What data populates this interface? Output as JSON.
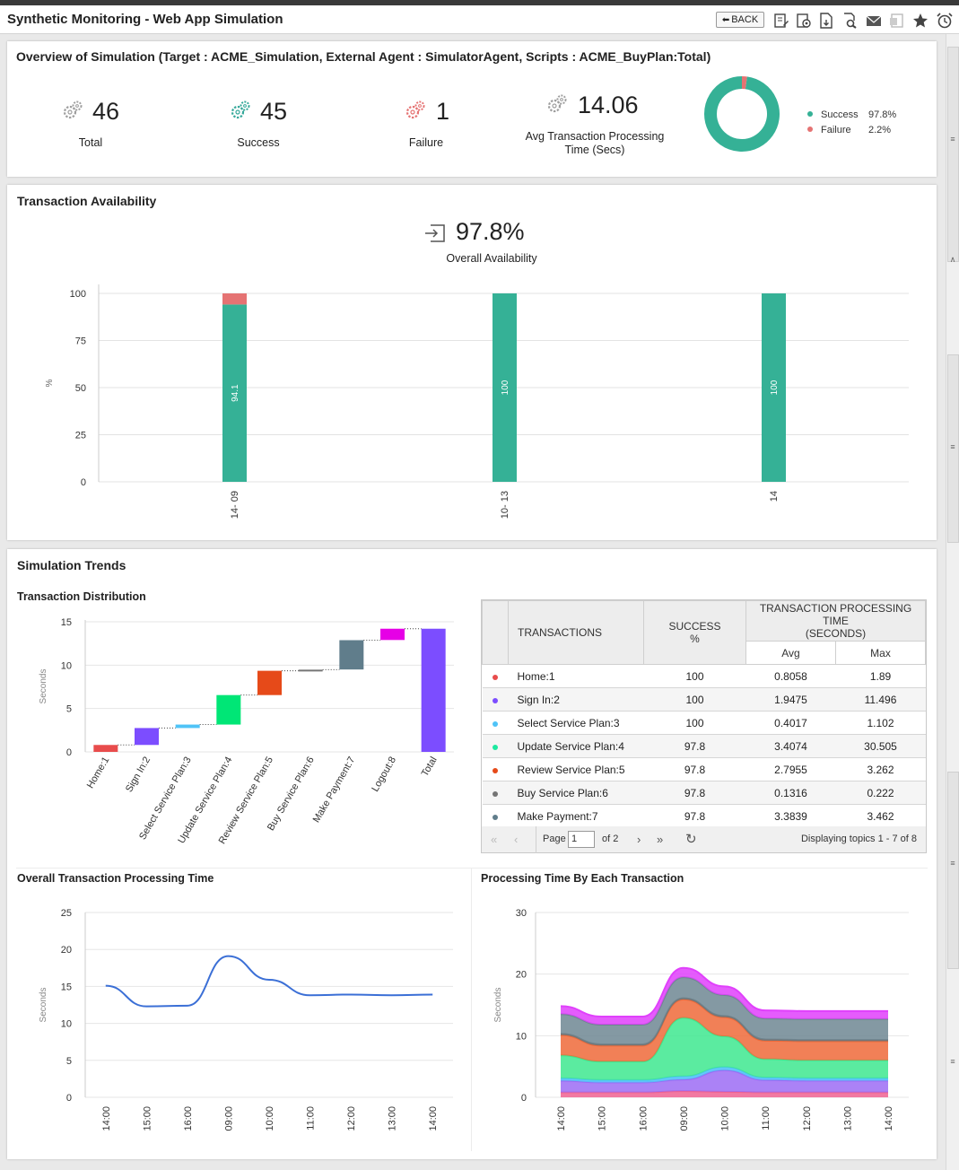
{
  "app": {
    "title": "Synthetic Monitoring - Web App Simulation",
    "back_label": "BACK",
    "toolbar_icons": [
      "edit-icon",
      "settings-icon",
      "pdf-icon",
      "print-preview-icon",
      "mail-icon",
      "excel-icon",
      "star-icon",
      "alarm-icon"
    ]
  },
  "overview": {
    "title": "Overview of Simulation (Target : ACME_Simulation, External Agent : SimulatorAgent, Scripts : ACME_BuyPlan:Total)",
    "kpis": [
      {
        "value": "46",
        "label": "Total",
        "color": "#9e9e9e"
      },
      {
        "value": "45",
        "label": "Success",
        "color": "#35a89a"
      },
      {
        "value": "1",
        "label": "Failure",
        "color": "#e57373"
      }
    ],
    "avg_value": "14.06",
    "avg_label_1": "Avg Transaction Processing",
    "avg_label_2": "Time (Secs)",
    "donut": {
      "slices": [
        {
          "name": "Success",
          "pct_label": "97.8%",
          "value": 97.8,
          "color": "#35b196"
        },
        {
          "name": "Failure",
          "pct_label": "2.2%",
          "value": 2.2,
          "color": "#e57373"
        }
      ]
    }
  },
  "availability": {
    "title": "Transaction Availability",
    "value": "97.8%",
    "label": "Overall Availability"
  },
  "trends": {
    "title": "Simulation Trends",
    "distribution_title": "Transaction Distribution",
    "overall_title": "Overall Transaction Processing Time",
    "each_title": "Processing Time By Each Transaction"
  },
  "table": {
    "headers": {
      "transactions": "TRANSACTIONS",
      "success_1": "SUCCESS",
      "success_2": "%",
      "tpt_1": "TRANSACTION PROCESSING TIME",
      "tpt_2": "(SECONDS)",
      "avg": "Avg",
      "max": "Max"
    },
    "rows": [
      {
        "name": "Home:1",
        "success": "100",
        "avg": "0.8058",
        "max": "1.89",
        "color": "#e84c4c"
      },
      {
        "name": "Sign In:2",
        "success": "100",
        "avg": "1.9475",
        "max": "11.496",
        "color": "#7c4dff"
      },
      {
        "name": "Select Service Plan:3",
        "success": "100",
        "avg": "0.4017",
        "max": "1.102",
        "color": "#4fc3f7"
      },
      {
        "name": "Update Service Plan:4",
        "success": "97.8",
        "avg": "3.4074",
        "max": "30.505",
        "color": "#1de9a0"
      },
      {
        "name": "Review Service Plan:5",
        "success": "97.8",
        "avg": "2.7955",
        "max": "3.262",
        "color": "#e64a19"
      },
      {
        "name": "Buy Service Plan:6",
        "success": "97.8",
        "avg": "0.1316",
        "max": "0.222",
        "color": "#757575"
      },
      {
        "name": "Make Payment:7",
        "success": "97.8",
        "avg": "3.3839",
        "max": "3.462",
        "color": "#607d8b"
      }
    ],
    "pager": {
      "page_label": "Page",
      "page_value": "1",
      "of_label": "of 2",
      "display_label": "Displaying topics 1 - 7 of 8"
    }
  },
  "chart_data": [
    {
      "type": "pie",
      "categories": [
        "Success",
        "Failure"
      ],
      "values": [
        97.8,
        2.2
      ],
      "legend": "right"
    },
    {
      "type": "bar",
      "title": "Transaction Availability",
      "ylabel": "%",
      "ylim": [
        0,
        100
      ],
      "yticks": [
        "0",
        "25",
        "50",
        "75",
        "100"
      ],
      "categories": [
        "14- 09",
        "10- 13",
        "14"
      ],
      "series": [
        {
          "name": "Success",
          "values": [
            94.1,
            100,
            100
          ],
          "labels": [
            "94.1",
            "100",
            "100"
          ],
          "color": "#35b196"
        },
        {
          "name": "Failure",
          "values": [
            5.9,
            0,
            0
          ],
          "color": "#e57373"
        }
      ],
      "stacked": true,
      "grid": true
    },
    {
      "type": "bar",
      "title": "Transaction Distribution",
      "ylabel": "Seconds",
      "ylim": [
        0,
        15
      ],
      "yticks": [
        "0",
        "5",
        "10",
        "15"
      ],
      "categories": [
        "Home:1",
        "Sign In:2",
        "Select Service Plan:3",
        "Update Service Plan:4",
        "Review Service Plan:5",
        "Buy Service Plan:6",
        "Make Payment:7",
        "Logout:8",
        "Total"
      ],
      "waterfall_start": [
        0,
        0.8,
        2.75,
        3.15,
        6.55,
        9.35,
        9.5,
        12.9,
        0
      ],
      "values": [
        0.8,
        1.95,
        0.4,
        3.4,
        2.8,
        0.13,
        3.38,
        1.3,
        14.2
      ],
      "colors": [
        "#e84c4c",
        "#7c4dff",
        "#4fc3f7",
        "#00e676",
        "#e64a19",
        "#757575",
        "#607d8b",
        "#e600e6",
        "#7c4dff"
      ]
    },
    {
      "type": "line",
      "title": "Overall Transaction Processing Time",
      "ylabel": "Seconds",
      "ylim": [
        0,
        25
      ],
      "yticks": [
        "0",
        "5",
        "10",
        "15",
        "20",
        "25"
      ],
      "x": [
        "14:00",
        "15:00",
        "16:00",
        "09:00",
        "10:00",
        "11:00",
        "12:00",
        "13:00",
        "14:00"
      ],
      "values": [
        15.1,
        12.3,
        12.4,
        19.1,
        15.9,
        13.8,
        13.9,
        13.8,
        13.9
      ],
      "color": "#3b6fd6"
    },
    {
      "type": "area",
      "title": "Processing Time By Each Transaction",
      "ylabel": "Seconds",
      "ylim": [
        0,
        30
      ],
      "yticks": [
        "0",
        "10",
        "20",
        "30"
      ],
      "x": [
        "14:00",
        "15:00",
        "16:00",
        "09:00",
        "10:00",
        "11:00",
        "12:00",
        "13:00",
        "14:00"
      ],
      "stacked": true,
      "series": [
        {
          "name": "Home:1",
          "color": "#f06292",
          "values": [
            0.8,
            0.8,
            0.8,
            1.0,
            0.9,
            0.8,
            0.8,
            0.8,
            0.8
          ]
        },
        {
          "name": "Sign In:2",
          "color": "#9c6cf5",
          "values": [
            1.9,
            1.6,
            1.6,
            1.9,
            3.5,
            2.0,
            1.9,
            1.9,
            1.9
          ]
        },
        {
          "name": "Select Service Plan:3",
          "color": "#4fc3f7",
          "values": [
            0.4,
            0.4,
            0.4,
            0.5,
            0.5,
            0.4,
            0.4,
            0.4,
            0.4
          ]
        },
        {
          "name": "Update Service Plan:4",
          "color": "#3ee88f",
          "values": [
            3.7,
            3.0,
            3.0,
            9.5,
            5.0,
            3.0,
            2.9,
            2.9,
            2.9
          ]
        },
        {
          "name": "Review Service Plan:5",
          "color": "#ef6a3a",
          "values": [
            3.3,
            2.6,
            2.6,
            3.0,
            3.1,
            3.0,
            3.1,
            3.1,
            3.1
          ]
        },
        {
          "name": "Buy Service Plan:6",
          "color": "#757575",
          "values": [
            0.2,
            0.2,
            0.2,
            0.2,
            0.2,
            0.2,
            0.2,
            0.2,
            0.2
          ]
        },
        {
          "name": "Make Payment:7",
          "color": "#6f8793",
          "values": [
            3.2,
            3.2,
            3.2,
            3.4,
            3.4,
            3.4,
            3.4,
            3.4,
            3.4
          ]
        },
        {
          "name": "Logout:8",
          "color": "#e040fb",
          "values": [
            1.3,
            1.3,
            1.3,
            1.5,
            1.4,
            1.3,
            1.3,
            1.3,
            1.3
          ]
        }
      ]
    }
  ]
}
